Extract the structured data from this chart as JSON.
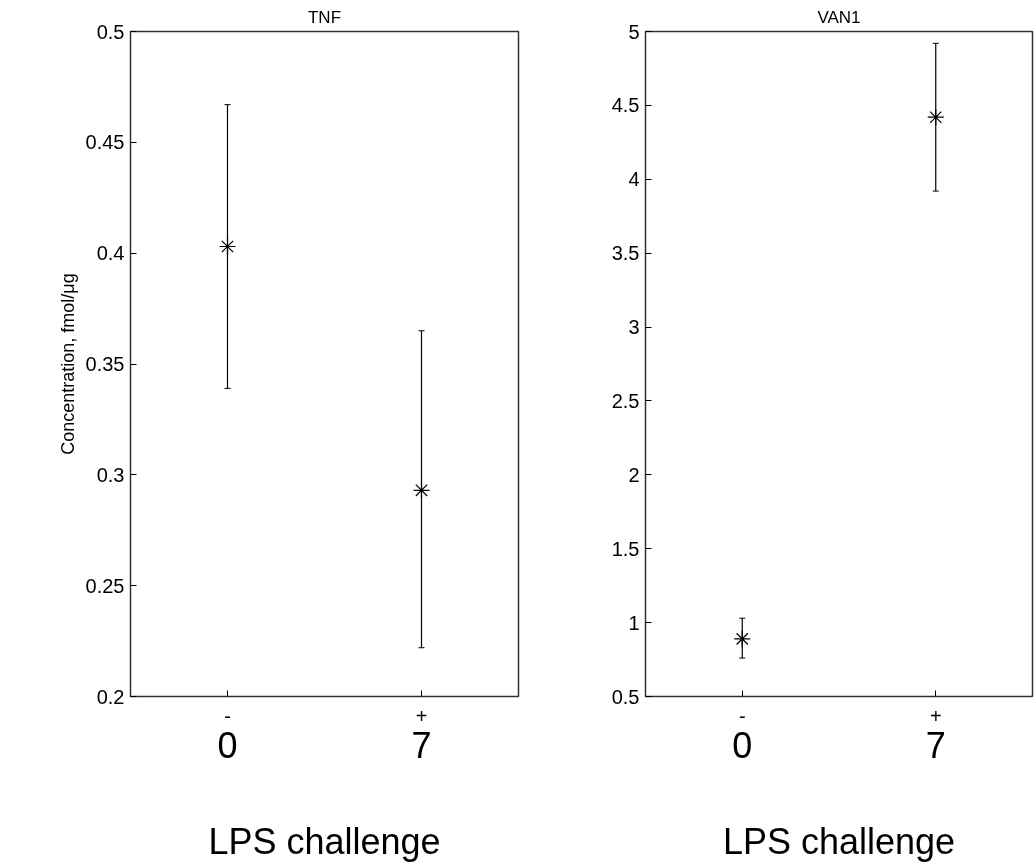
{
  "chart_data": [
    {
      "type": "scatter",
      "title": "TNF",
      "ylabel": "Concentration, fmol/μg",
      "xlabel": "LPS challenge",
      "categories": [
        "-",
        "+"
      ],
      "annotations": [
        "0",
        "7"
      ],
      "series": [
        {
          "color": "#000000",
          "values": [
            0.403,
            0.293
          ],
          "errors": [
            [
              0.339,
              0.467
            ],
            [
              0.222,
              0.365
            ]
          ]
        }
      ],
      "ylim": [
        0.2,
        0.5
      ],
      "yticks": [
        0.2,
        0.25,
        0.3,
        0.35,
        0.4,
        0.45,
        0.5
      ],
      "marker": "cross",
      "grid": false
    },
    {
      "type": "scatter",
      "title": "VAN1",
      "xlabel": "LPS challenge",
      "categories": [
        "-",
        "+"
      ],
      "annotations": [
        "0",
        "7"
      ],
      "series": [
        {
          "color": "#000000",
          "values": [
            0.89,
            4.42
          ],
          "errors": [
            [
              0.76,
              1.03
            ],
            [
              3.92,
              4.92
            ]
          ]
        }
      ],
      "ylim": [
        0.5,
        5
      ],
      "yticks": [
        0.5,
        1,
        1.5,
        2,
        2.5,
        3,
        3.5,
        4,
        4.5,
        5
      ],
      "marker": "cross",
      "grid": false
    }
  ]
}
